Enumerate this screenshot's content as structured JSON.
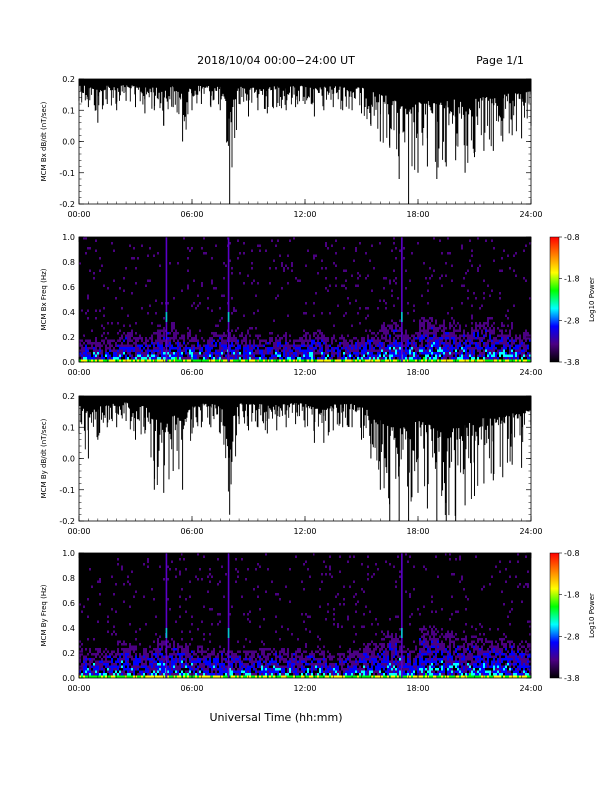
{
  "header": {
    "title": "2018/10/04  00:00−24:00 UT",
    "page": "Page 1/1"
  },
  "xaxis_label": "Universal Time (hh:mm)",
  "chart_data": [
    {
      "type": "line",
      "ylabel": "MCM Bx dB/dt (nT/sec)",
      "xlim": [
        0,
        24
      ],
      "ylim": [
        -0.2,
        0.2
      ],
      "x_ticks": [
        "00:00",
        "06:00",
        "12:00",
        "18:00",
        "24:00"
      ],
      "y_ticks": [
        "-0.2",
        "-0.1",
        "0.0",
        "0.1",
        "0.2"
      ],
      "series": [
        {
          "x": [
            0,
            0.5,
            1,
            1.5,
            2,
            2.5,
            3,
            3.5,
            4,
            4.5,
            5,
            5.5,
            6,
            6.5,
            7,
            7.5,
            8,
            8.5,
            9,
            9.5,
            10,
            10.5,
            11,
            11.5,
            12,
            12.5,
            13,
            13.5,
            14,
            14.5,
            15,
            15.5,
            16,
            16.5,
            17,
            17.5,
            18,
            18.5,
            19,
            19.5,
            20,
            20.5,
            21,
            21.5,
            22,
            22.5,
            23,
            23.5,
            24
          ],
          "ymin": [
            0.13,
            0.11,
            0.06,
            0.12,
            0.1,
            0.13,
            0.11,
            0.09,
            0.1,
            0.05,
            0.11,
            0.0,
            0.1,
            0.12,
            0.11,
            0.1,
            -0.2,
            0.12,
            0.08,
            0.1,
            0.09,
            0.11,
            0.1,
            0.11,
            0.12,
            0.08,
            0.1,
            0.11,
            0.1,
            0.1,
            0.09,
            0.05,
            0.0,
            -0.02,
            -0.12,
            -0.2,
            -0.1,
            -0.08,
            -0.12,
            -0.08,
            -0.06,
            -0.1,
            -0.05,
            -0.03,
            -0.03,
            0.0,
            0.02,
            0.01,
            0.05
          ],
          "ymax": [
            0.2,
            0.2,
            0.2,
            0.2,
            0.2,
            0.2,
            0.2,
            0.2,
            0.2,
            0.2,
            0.2,
            0.2,
            0.2,
            0.2,
            0.2,
            0.2,
            0.2,
            0.2,
            0.2,
            0.2,
            0.2,
            0.2,
            0.2,
            0.2,
            0.2,
            0.2,
            0.2,
            0.2,
            0.2,
            0.2,
            0.2,
            0.2,
            0.2,
            0.2,
            0.2,
            0.2,
            0.2,
            0.2,
            0.2,
            0.2,
            0.2,
            0.2,
            0.2,
            0.2,
            0.2,
            0.2,
            0.2,
            0.2,
            0.2
          ]
        }
      ]
    },
    {
      "type": "heatmap",
      "ylabel": "MCM Bx Freq (Hz)",
      "xlim": [
        0,
        24
      ],
      "ylim": [
        0.0,
        1.0
      ],
      "x_ticks": [
        "00:00",
        "06:00",
        "12:00",
        "18:00",
        "24:00"
      ],
      "y_ticks": [
        "0.0",
        "0.2",
        "0.4",
        "0.6",
        "0.8",
        "1.0"
      ],
      "colorbar": {
        "label": "Log10 Power",
        "ticks": [
          "-0.8",
          "-1.8",
          "-2.8",
          "-3.8"
        ],
        "range": [
          -3.8,
          -0.8
        ],
        "colors": [
          "#000000",
          "#4b0082",
          "#0000ff",
          "#00ffff",
          "#00ff00",
          "#ffff00",
          "#ff8000",
          "#ff0000"
        ]
      },
      "x_hours": [
        0,
        1,
        2,
        3,
        4,
        5,
        6,
        7,
        8,
        9,
        10,
        11,
        12,
        13,
        14,
        15,
        16,
        17,
        18,
        19,
        20,
        21,
        22,
        23
      ],
      "activity_top_hz": [
        0.25,
        0.22,
        0.3,
        0.28,
        0.35,
        0.3,
        0.25,
        0.3,
        1.0,
        0.25,
        0.28,
        0.25,
        0.3,
        0.25,
        0.25,
        0.3,
        0.4,
        1.0,
        0.45,
        0.4,
        0.35,
        0.4,
        0.35,
        0.3
      ],
      "vertical_streaks_hours": [
        4.6,
        7.9,
        17.1
      ]
    },
    {
      "type": "line",
      "ylabel": "MCM By dB/dt (nT/sec)",
      "xlim": [
        0,
        24
      ],
      "ylim": [
        -0.2,
        0.2
      ],
      "x_ticks": [
        "00:00",
        "06:00",
        "12:00",
        "18:00",
        "24:00"
      ],
      "y_ticks": [
        "-0.2",
        "-0.1",
        "0.0",
        "0.1",
        "0.2"
      ],
      "series": [
        {
          "x": [
            0,
            0.5,
            1,
            1.5,
            2,
            2.5,
            3,
            3.5,
            4,
            4.5,
            5,
            5.5,
            6,
            6.5,
            7,
            7.5,
            8,
            8.5,
            9,
            9.5,
            10,
            10.5,
            11,
            11.5,
            12,
            12.5,
            13,
            13.5,
            14,
            14.5,
            15,
            15.5,
            16,
            16.5,
            17,
            17.5,
            18,
            18.5,
            19,
            19.5,
            20,
            20.5,
            21,
            21.5,
            22,
            22.5,
            23,
            23.5,
            24
          ],
          "ymin": [
            0.08,
            0.0,
            0.06,
            0.1,
            0.1,
            0.12,
            0.06,
            0.08,
            -0.1,
            -0.11,
            -0.04,
            -0.1,
            0.08,
            0.1,
            0.1,
            0.08,
            -0.18,
            0.11,
            0.09,
            0.1,
            0.08,
            0.09,
            0.1,
            0.11,
            0.1,
            0.05,
            0.05,
            0.09,
            0.1,
            0.1,
            0.06,
            0.0,
            -0.1,
            -0.2,
            -0.2,
            -0.2,
            -0.11,
            -0.16,
            -0.2,
            -0.2,
            -0.2,
            -0.15,
            -0.12,
            -0.08,
            -0.07,
            -0.06,
            -0.02,
            -0.03,
            0.06
          ],
          "ymax": [
            0.2,
            0.2,
            0.2,
            0.2,
            0.2,
            0.2,
            0.2,
            0.2,
            0.2,
            0.2,
            0.2,
            0.2,
            0.2,
            0.2,
            0.2,
            0.2,
            0.2,
            0.2,
            0.2,
            0.2,
            0.2,
            0.2,
            0.2,
            0.2,
            0.2,
            0.2,
            0.2,
            0.2,
            0.2,
            0.2,
            0.2,
            0.2,
            0.2,
            0.2,
            0.2,
            0.2,
            0.2,
            0.2,
            0.2,
            0.2,
            0.2,
            0.2,
            0.2,
            0.2,
            0.2,
            0.2,
            0.2,
            0.2,
            0.2
          ]
        }
      ]
    },
    {
      "type": "heatmap",
      "ylabel": "MCM By Freq (Hz)",
      "xlim": [
        0,
        24
      ],
      "ylim": [
        0.0,
        1.0
      ],
      "x_ticks": [
        "00:00",
        "06:00",
        "12:00",
        "18:00",
        "24:00"
      ],
      "y_ticks": [
        "0.0",
        "0.2",
        "0.4",
        "0.6",
        "0.8",
        "1.0"
      ],
      "colorbar": {
        "label": "Log10 Power",
        "ticks": [
          "-0.8",
          "-1.8",
          "-2.8",
          "-3.8"
        ],
        "range": [
          -3.8,
          -0.8
        ],
        "colors": [
          "#000000",
          "#4b0082",
          "#0000ff",
          "#00ffff",
          "#00ff00",
          "#ffff00",
          "#ff8000",
          "#ff0000"
        ]
      },
      "x_hours": [
        0,
        1,
        2,
        3,
        4,
        5,
        6,
        7,
        8,
        9,
        10,
        11,
        12,
        13,
        14,
        15,
        16,
        17,
        18,
        19,
        20,
        21,
        22,
        23
      ],
      "activity_top_hz": [
        0.3,
        0.28,
        0.35,
        0.32,
        0.4,
        0.35,
        0.3,
        0.3,
        1.0,
        0.3,
        0.3,
        0.28,
        0.3,
        0.25,
        0.28,
        0.35,
        0.45,
        1.0,
        0.5,
        0.45,
        0.4,
        0.4,
        0.4,
        0.35
      ],
      "vertical_streaks_hours": [
        4.6,
        7.9,
        17.1
      ]
    }
  ]
}
